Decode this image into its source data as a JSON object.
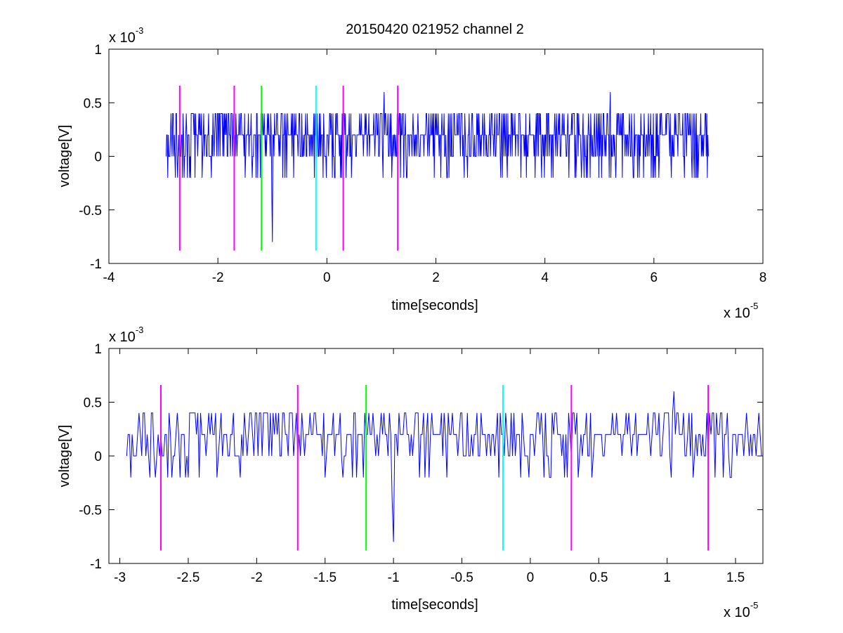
{
  "figure": {
    "title": "20150420 021952 channel 2"
  },
  "colors": {
    "trace": "#0000ff",
    "magenta_marker": "#ff00ff",
    "green_marker": "#00ff00",
    "cyan_marker": "#00ffff",
    "axis": "#000000",
    "background": "#ffffff"
  },
  "chart_data": [
    {
      "type": "line",
      "title": "20150420 021952 channel 2",
      "xlabel": "time[seconds]",
      "ylabel": "voltage[V]",
      "x_exponent_label": "x 10",
      "x_exponent": "-5",
      "y_exponent_label": "x 10",
      "y_exponent": "-3",
      "xlim": [
        -4,
        8
      ],
      "ylim": [
        -1,
        1
      ],
      "xticks": [
        -4,
        -2,
        0,
        2,
        4,
        6,
        8
      ],
      "xtick_labels": [
        "-4",
        "-2",
        "0",
        "2",
        "4",
        "6",
        "8"
      ],
      "yticks": [
        -1,
        -0.5,
        0,
        0.5,
        1
      ],
      "ytick_labels": [
        "-1",
        "-0.5",
        "0",
        "0.5",
        "1"
      ],
      "grid": false,
      "series": [
        {
          "values_note": "",
          "x_range": [
            -2.95,
            7.0
          ],
          "levels": [
            -0.2,
            0,
            0.2,
            0.4
          ],
          "spikes": [
            {
              "x": -1.0,
              "y": -0.8
            },
            {
              "x": 1.05,
              "y": 0.6
            },
            {
              "x": 5.2,
              "y": 0.6
            }
          ]
        }
      ],
      "markers": [
        {
          "x": -2.7,
          "color": "magenta",
          "y_range": [
            -0.88,
            0.66
          ]
        },
        {
          "x": -1.7,
          "color": "magenta",
          "y_range": [
            -0.88,
            0.66
          ]
        },
        {
          "x": -1.2,
          "color": "green",
          "y_range": [
            -0.88,
            0.66
          ]
        },
        {
          "x": -0.2,
          "color": "cyan",
          "y_range": [
            -0.88,
            0.66
          ]
        },
        {
          "x": 0.3,
          "color": "magenta",
          "y_range": [
            -0.88,
            0.66
          ]
        },
        {
          "x": 1.3,
          "color": "magenta",
          "y_range": [
            -0.88,
            0.66
          ]
        }
      ]
    },
    {
      "type": "line",
      "title": "",
      "xlabel": "time[seconds]",
      "ylabel": "voltage[V]",
      "x_exponent_label": "x 10",
      "x_exponent": "-5",
      "y_exponent_label": "x 10",
      "y_exponent": "-3",
      "xlim": [
        -3.08,
        1.7
      ],
      "ylim": [
        -1,
        1
      ],
      "xticks": [
        -3,
        -2.5,
        -2,
        -1.5,
        -1,
        -0.5,
        0,
        0.5,
        1,
        1.5
      ],
      "xtick_labels": [
        "-3",
        "-2.5",
        "-2",
        "-1.5",
        "-1",
        "-0.5",
        "0",
        "0.5",
        "1",
        "1.5"
      ],
      "yticks": [
        -1,
        -0.5,
        0,
        0.5,
        1
      ],
      "ytick_labels": [
        "-1",
        "-0.5",
        "0",
        "0.5",
        "1"
      ],
      "grid": false,
      "series": [
        {
          "values_note": "",
          "x_range": [
            -2.95,
            1.7
          ],
          "levels": [
            -0.2,
            0,
            0.2,
            0.4
          ],
          "spikes": [
            {
              "x": -1.0,
              "y": -0.8
            },
            {
              "x": 1.05,
              "y": 0.6
            }
          ]
        }
      ],
      "markers": [
        {
          "x": -2.7,
          "color": "magenta",
          "y_range": [
            -0.88,
            0.66
          ]
        },
        {
          "x": -1.7,
          "color": "magenta",
          "y_range": [
            -0.88,
            0.66
          ]
        },
        {
          "x": -1.2,
          "color": "green",
          "y_range": [
            -0.88,
            0.66
          ]
        },
        {
          "x": -0.2,
          "color": "cyan",
          "y_range": [
            -0.88,
            0.66
          ]
        },
        {
          "x": 0.3,
          "color": "magenta",
          "y_range": [
            -0.88,
            0.66
          ]
        },
        {
          "x": 1.3,
          "color": "magenta",
          "y_range": [
            -0.88,
            0.66
          ]
        }
      ]
    }
  ]
}
